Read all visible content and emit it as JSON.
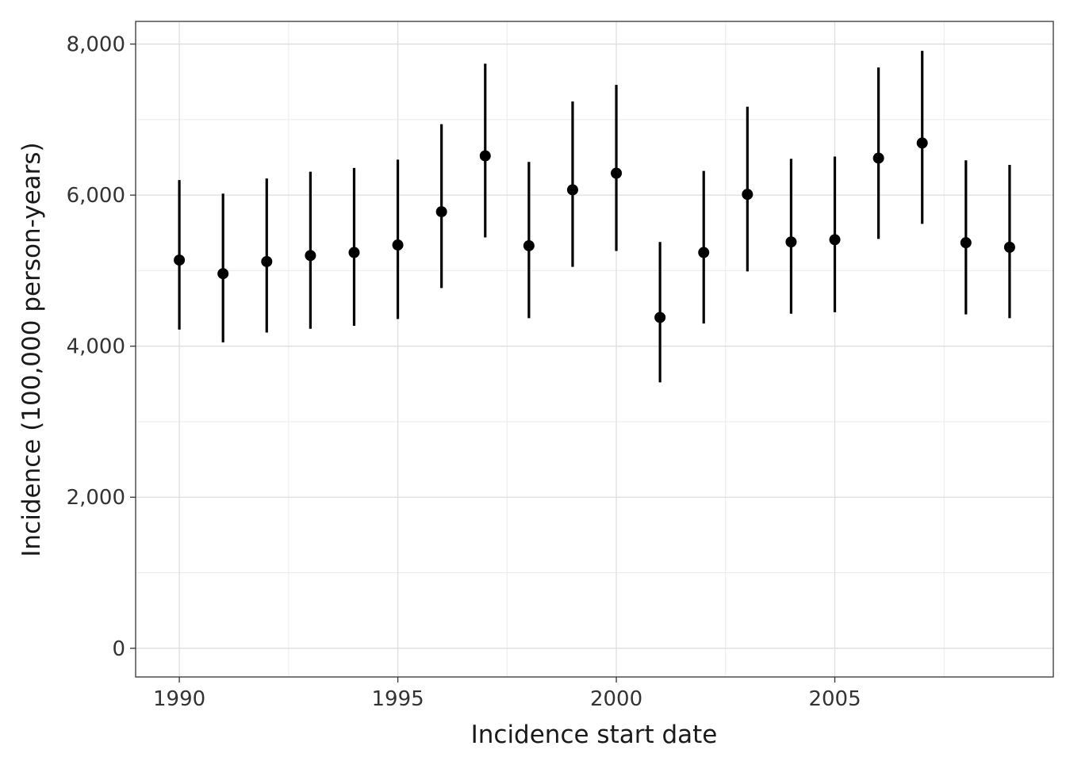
{
  "chart_data": {
    "type": "scatter",
    "title": "",
    "xlabel": "Incidence start date",
    "ylabel": "Incidence (100,000 person-years)",
    "x_ticks": [
      "1990",
      "1995",
      "2000",
      "2005"
    ],
    "y_ticks": [
      "0",
      "2,000",
      "4,000",
      "6,000",
      "8,000"
    ],
    "xlim": [
      "1989-01-01",
      "2010-01-01"
    ],
    "ylim": [
      -380,
      8300
    ],
    "grid": true,
    "legend": "none",
    "series": [
      {
        "points": [
          {
            "x": "1990-01-01",
            "y": 5140,
            "lower": 4220,
            "upper": 6200
          },
          {
            "x": "1991-01-01",
            "y": 4960,
            "lower": 4050,
            "upper": 6020
          },
          {
            "x": "1992-01-01",
            "y": 5120,
            "lower": 4180,
            "upper": 6220
          },
          {
            "x": "1993-01-01",
            "y": 5200,
            "lower": 4230,
            "upper": 6310
          },
          {
            "x": "1994-01-01",
            "y": 5240,
            "lower": 4270,
            "upper": 6360
          },
          {
            "x": "1995-01-01",
            "y": 5340,
            "lower": 4360,
            "upper": 6470
          },
          {
            "x": "1996-01-01",
            "y": 5780,
            "lower": 4770,
            "upper": 6940
          },
          {
            "x": "1997-01-01",
            "y": 6520,
            "lower": 5440,
            "upper": 7740
          },
          {
            "x": "1998-01-01",
            "y": 5330,
            "lower": 4370,
            "upper": 6440
          },
          {
            "x": "1999-01-01",
            "y": 6070,
            "lower": 5050,
            "upper": 7240
          },
          {
            "x": "2000-01-01",
            "y": 6290,
            "lower": 5260,
            "upper": 7460
          },
          {
            "x": "2001-01-01",
            "y": 4380,
            "lower": 3520,
            "upper": 5380
          },
          {
            "x": "2002-01-01",
            "y": 5240,
            "lower": 4300,
            "upper": 6320
          },
          {
            "x": "2003-01-01",
            "y": 6010,
            "lower": 4990,
            "upper": 7170
          },
          {
            "x": "2004-01-01",
            "y": 5380,
            "lower": 4430,
            "upper": 6480
          },
          {
            "x": "2005-01-01",
            "y": 5410,
            "lower": 4450,
            "upper": 6510
          },
          {
            "x": "2006-01-01",
            "y": 6490,
            "lower": 5420,
            "upper": 7690
          },
          {
            "x": "2007-01-01",
            "y": 6690,
            "lower": 5620,
            "upper": 7910
          },
          {
            "x": "2008-01-01",
            "y": 5370,
            "lower": 4420,
            "upper": 6460
          },
          {
            "x": "2009-01-01",
            "y": 5310,
            "lower": 4370,
            "upper": 6400
          }
        ]
      }
    ],
    "colors": {
      "point": "#000000",
      "panel_border": "#333333",
      "major_grid": "#dedede",
      "minor_grid": "#ebebeb"
    }
  }
}
